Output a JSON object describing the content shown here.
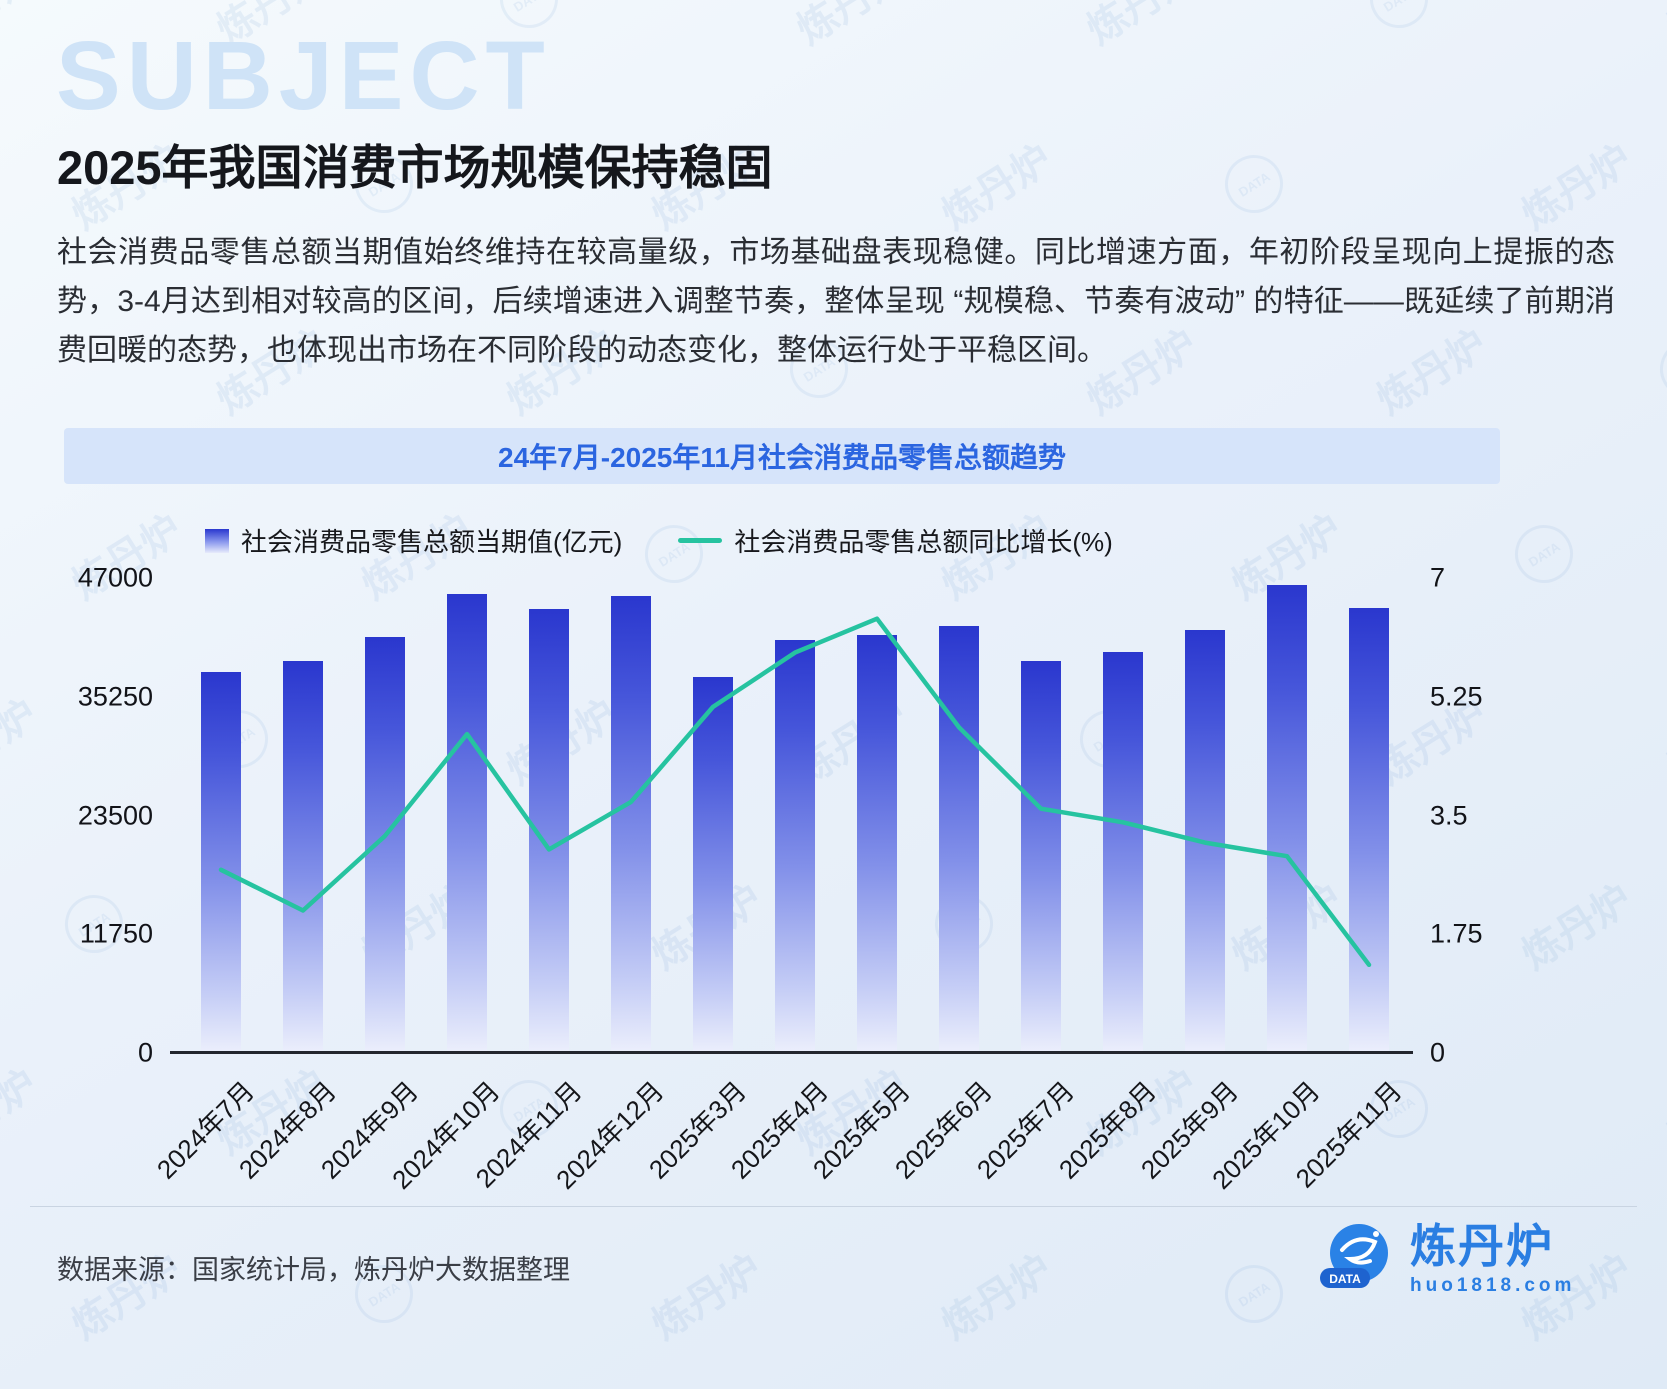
{
  "page": {
    "ghost_text": "SUBJECT",
    "title": "2025年我国消费市场规模保持稳固",
    "body": "社会消费品零售总额当期值始终维持在较高量级，市场基础盘表现稳健。同比增速方面，年初阶段呈现向上提振的态势，3-4月达到相对较高的区间，后续增速进入调整节奏，整体呈现 “规模稳、节奏有波动”  的特征——既延续了前期消费回暖的态势，也体现出市场在不同阶段的动态变化，整体运行处于平稳区间。"
  },
  "chart_data": {
    "type": "bar",
    "title": "24年7月-2025年11月社会消费品零售总额趋势",
    "categories": [
      "2024年7月",
      "2024年8月",
      "2024年9月",
      "2024年10月",
      "2024年11月",
      "2024年12月",
      "2025年3月",
      "2025年4月",
      "2025年5月",
      "2025年6月",
      "2025年7月",
      "2025年8月",
      "2025年9月",
      "2025年10月",
      "2025年11月"
    ],
    "series": [
      {
        "name": "社会消费品零售总额当期值(亿元)",
        "type": "bar",
        "axis": "left",
        "values": [
          37700,
          38800,
          41200,
          45400,
          43900,
          45200,
          37200,
          40900,
          41400,
          42300,
          38800,
          39700,
          41900,
          46300,
          44000
        ]
      },
      {
        "name": "社会消费品零售总额同比增长(%)",
        "type": "line",
        "axis": "right",
        "values": [
          2.7,
          2.1,
          3.2,
          4.7,
          3.0,
          3.7,
          5.1,
          5.9,
          6.4,
          4.8,
          3.6,
          3.4,
          3.1,
          2.9,
          1.3
        ]
      }
    ],
    "left_axis": {
      "min": 0,
      "max": 47000,
      "ticks": [
        "47000",
        "35250",
        "23500",
        "11750",
        "0"
      ]
    },
    "right_axis": {
      "min": 0,
      "max": 7,
      "ticks": [
        "7",
        "5.25",
        "3.5",
        "1.75",
        "0"
      ]
    },
    "legend_position": "top",
    "grid": false,
    "colors": {
      "bar_top": "#2a37ce",
      "bar_bottom": "#eceffc",
      "line": "#26c3a0",
      "banner_bg": "#d6e4fa",
      "banner_text": "#2b65e0"
    }
  },
  "footer": {
    "source": "数据来源：国家统计局，炼丹炉大数据整理",
    "brand": "炼丹炉",
    "brand_url": "huo1818.com",
    "brand_badge": "DATA"
  },
  "watermark": {
    "text": "炼丹炉",
    "badge": "DATA"
  }
}
